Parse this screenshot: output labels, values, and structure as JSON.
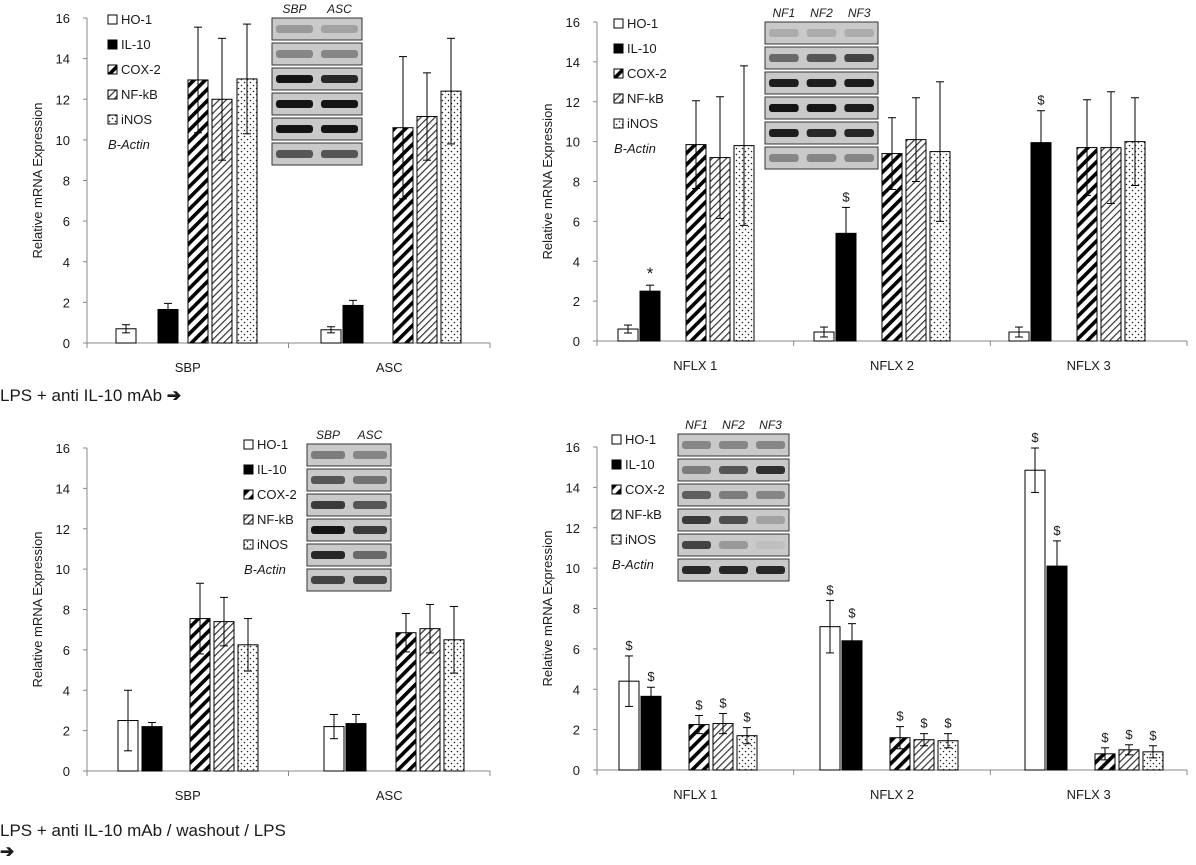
{
  "captions": {
    "middle": "LPS + anti IL-10 mAb",
    "bottom": "LPS + anti IL-10 mAb / washout / LPS",
    "arrow": "➔"
  },
  "legend": [
    "HO-1",
    "IL-10",
    "COX-2",
    "NF-kB",
    "iNOS"
  ],
  "actin_label": "B-Actin",
  "chart_data": [
    {
      "id": "top-left",
      "type": "bar",
      "ylabel": "Relative mRNA Expression",
      "ylim": [
        0,
        16
      ],
      "yticks": [
        0,
        2,
        4,
        6,
        8,
        10,
        12,
        14,
        16
      ],
      "categories": [
        "SBP",
        "ASC"
      ],
      "series": [
        {
          "name": "HO-1",
          "values": [
            0.7,
            0.65
          ],
          "errors": [
            0.2,
            0.15
          ],
          "marks": [
            "",
            ""
          ]
        },
        {
          "name": "IL-10",
          "values": [
            1.65,
            1.85
          ],
          "errors": [
            0.3,
            0.25
          ],
          "marks": [
            "",
            ""
          ]
        },
        {
          "name": "COX-2",
          "values": [
            12.95,
            10.6
          ],
          "errors": [
            2.6,
            3.5
          ],
          "marks": [
            "",
            ""
          ]
        },
        {
          "name": "NF-kB",
          "values": [
            12.0,
            11.15
          ],
          "errors": [
            3.0,
            2.15
          ],
          "marks": [
            "",
            ""
          ]
        },
        {
          "name": "iNOS",
          "values": [
            13.0,
            12.4
          ],
          "errors": [
            2.7,
            2.6
          ],
          "marks": [
            "",
            ""
          ]
        }
      ],
      "blot_headers": [
        "SBP",
        "ASC"
      ]
    },
    {
      "id": "top-right",
      "type": "bar",
      "ylabel": "Relative mRNA Expression",
      "ylim": [
        0,
        16
      ],
      "yticks": [
        0,
        2,
        4,
        6,
        8,
        10,
        12,
        14,
        16
      ],
      "categories": [
        "NFLX 1",
        "NFLX 2",
        "NFLX 3"
      ],
      "series": [
        {
          "name": "HO-1",
          "values": [
            0.6,
            0.45,
            0.45
          ],
          "errors": [
            0.2,
            0.25,
            0.25
          ],
          "marks": [
            "",
            "",
            ""
          ]
        },
        {
          "name": "IL-10",
          "values": [
            2.5,
            5.4,
            9.95
          ],
          "errors": [
            0.3,
            1.3,
            1.6
          ],
          "marks": [
            "*",
            "$",
            "$"
          ]
        },
        {
          "name": "COX-2",
          "values": [
            9.85,
            9.4,
            9.7
          ],
          "errors": [
            2.2,
            1.8,
            2.4
          ],
          "marks": [
            "",
            "",
            ""
          ]
        },
        {
          "name": "NF-kB",
          "values": [
            9.2,
            10.1,
            9.7
          ],
          "errors": [
            3.05,
            2.1,
            2.8
          ],
          "marks": [
            "",
            "",
            ""
          ]
        },
        {
          "name": "iNOS",
          "values": [
            9.8,
            9.5,
            10.0
          ],
          "errors": [
            4.0,
            3.5,
            2.2
          ],
          "marks": [
            "",
            "",
            ""
          ]
        }
      ],
      "blot_headers": [
        "NF1",
        "NF2",
        "NF3"
      ]
    },
    {
      "id": "bottom-left",
      "type": "bar",
      "ylabel": "Relative mRNA Expression",
      "ylim": [
        0,
        16
      ],
      "yticks": [
        0,
        2,
        4,
        6,
        8,
        10,
        12,
        14,
        16
      ],
      "categories": [
        "SBP",
        "ASC"
      ],
      "series": [
        {
          "name": "HO-1",
          "values": [
            2.5,
            2.2
          ],
          "errors": [
            1.5,
            0.6
          ],
          "marks": [
            "",
            ""
          ]
        },
        {
          "name": "IL-10",
          "values": [
            2.2,
            2.35
          ],
          "errors": [
            0.2,
            0.45
          ],
          "marks": [
            "",
            ""
          ]
        },
        {
          "name": "COX-2",
          "values": [
            7.55,
            6.85
          ],
          "errors": [
            1.75,
            0.95
          ],
          "marks": [
            "",
            ""
          ]
        },
        {
          "name": "NF-kB",
          "values": [
            7.4,
            7.05
          ],
          "errors": [
            1.2,
            1.2
          ],
          "marks": [
            "",
            ""
          ]
        },
        {
          "name": "iNOS",
          "values": [
            6.25,
            6.5
          ],
          "errors": [
            1.3,
            1.65
          ],
          "marks": [
            "",
            ""
          ]
        }
      ],
      "blot_headers": [
        "SBP",
        "ASC"
      ]
    },
    {
      "id": "bottom-right",
      "type": "bar",
      "ylabel": "Relative mRNA Expression",
      "ylim": [
        0,
        16
      ],
      "yticks": [
        0,
        2,
        4,
        6,
        8,
        10,
        12,
        14,
        16
      ],
      "categories": [
        "NFLX 1",
        "NFLX 2",
        "NFLX 3"
      ],
      "series": [
        {
          "name": "HO-1",
          "values": [
            4.4,
            7.1,
            14.85
          ],
          "errors": [
            1.25,
            1.3,
            1.1
          ],
          "marks": [
            "$",
            "$",
            "$"
          ]
        },
        {
          "name": "IL-10",
          "values": [
            3.65,
            6.4,
            10.1
          ],
          "errors": [
            0.45,
            0.85,
            1.25
          ],
          "marks": [
            "$",
            "$",
            "$"
          ]
        },
        {
          "name": "COX-2",
          "values": [
            2.25,
            1.6,
            0.8
          ],
          "errors": [
            0.45,
            0.55,
            0.3
          ],
          "marks": [
            "$",
            "$",
            "$"
          ]
        },
        {
          "name": "NF-kB",
          "values": [
            2.3,
            1.5,
            1.0
          ],
          "errors": [
            0.5,
            0.3,
            0.25
          ],
          "marks": [
            "$",
            "$",
            "$"
          ]
        },
        {
          "name": "iNOS",
          "values": [
            1.7,
            1.45,
            0.9
          ],
          "errors": [
            0.4,
            0.35,
            0.3
          ],
          "marks": [
            "$",
            "$",
            "$"
          ]
        }
      ],
      "blot_headers": [
        "NF1",
        "NF2",
        "NF3"
      ]
    }
  ]
}
